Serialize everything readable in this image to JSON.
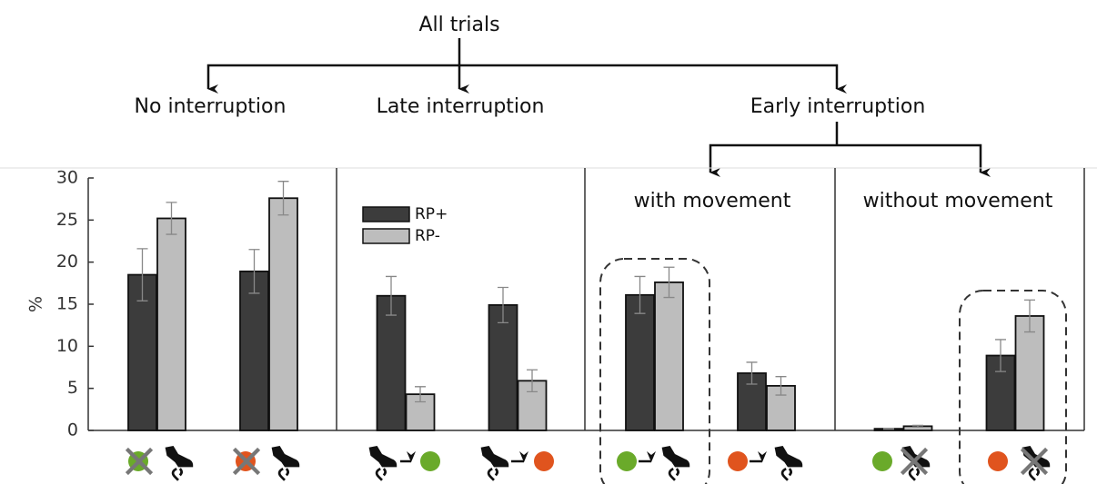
{
  "diagram": {
    "root": "All trials",
    "branches": [
      "No interruption",
      "Late interruption",
      "Early interruption"
    ]
  },
  "chart_data": {
    "type": "bar",
    "y_label": "%",
    "panel_labels": [
      "with movement",
      "without movement"
    ],
    "categories": [
      null,
      null,
      null,
      null,
      null,
      null,
      null,
      null
    ],
    "series": [
      {
        "name": "RP+",
        "color": "#3c3c3c",
        "values": [
          18.5,
          18.9,
          16.0,
          14.9,
          16.1,
          6.8,
          0.2,
          8.9
        ],
        "errors": [
          3.1,
          2.6,
          2.3,
          2.1,
          2.2,
          1.3,
          0.05,
          1.9
        ]
      },
      {
        "name": "RP-",
        "color": "#bdbdbd",
        "values": [
          25.2,
          27.6,
          4.3,
          5.9,
          17.6,
          5.3,
          0.5,
          13.6
        ],
        "errors": [
          1.9,
          2.0,
          0.9,
          1.3,
          1.8,
          1.1,
          0.1,
          1.9
        ]
      }
    ],
    "ylim": [
      0,
      30
    ],
    "yticks": [
      0,
      5,
      10,
      15,
      20,
      25,
      30
    ],
    "grid": false
  }
}
